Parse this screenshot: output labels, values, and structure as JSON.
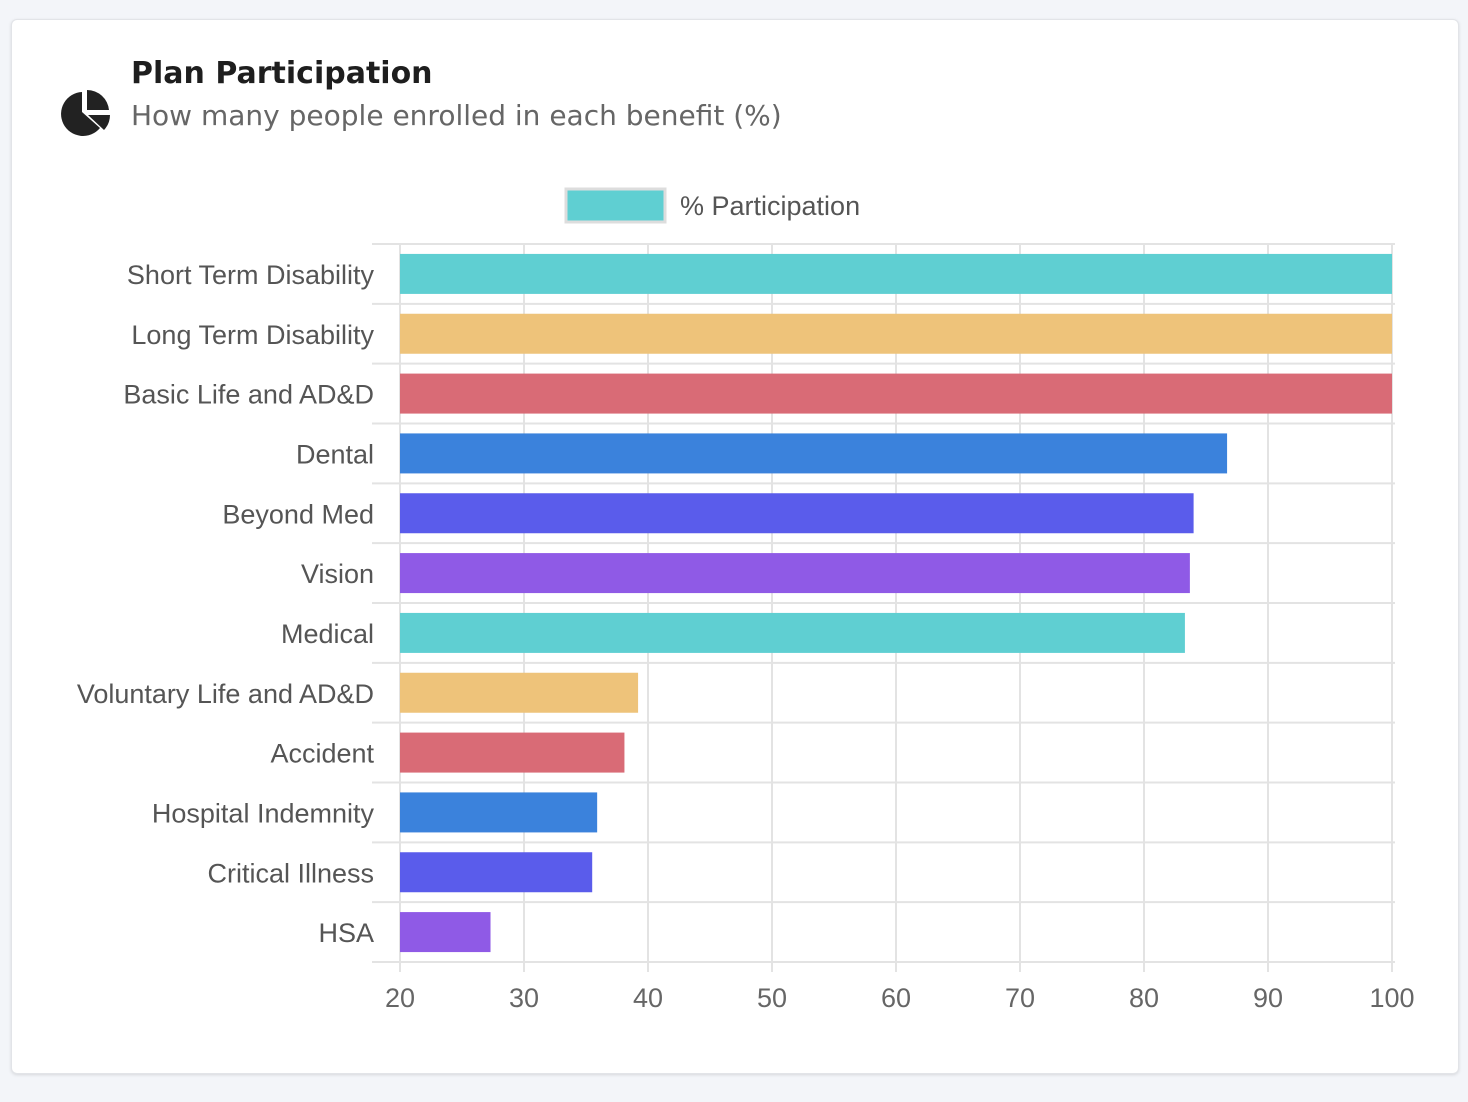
{
  "header": {
    "title": "Plan Participation",
    "subtitle": "How many people enrolled in each benefit (%)",
    "icon": "pie-chart-icon"
  },
  "chart_data": {
    "type": "bar",
    "orientation": "horizontal",
    "categories": [
      "Short Term Disability",
      "Long Term Disability",
      "Basic Life and AD&D",
      "Dental",
      "Beyond Med",
      "Vision",
      "Medical",
      "Voluntary Life and AD&D",
      "Accident",
      "Hospital Indemnity",
      "Critical Illness",
      "HSA"
    ],
    "series": [
      {
        "name": "% Participation",
        "values": [
          100,
          100,
          100,
          86.7,
          84.0,
          83.7,
          83.3,
          39.2,
          38.1,
          35.9,
          35.5,
          27.3
        ]
      }
    ],
    "bar_colors": [
      "#5fcfd2",
      "#eec37a",
      "#d96b76",
      "#3b82dc",
      "#5a5ceb",
      "#8f5ae6",
      "#5fcfd2",
      "#eec37a",
      "#d96b76",
      "#3b82dc",
      "#5a5ceb",
      "#8f5ae6"
    ],
    "xlim": [
      20,
      100
    ],
    "xticks": [
      "20",
      "30",
      "40",
      "50",
      "60",
      "70",
      "80",
      "90",
      "100"
    ],
    "grid": true,
    "legend_position": "top"
  }
}
